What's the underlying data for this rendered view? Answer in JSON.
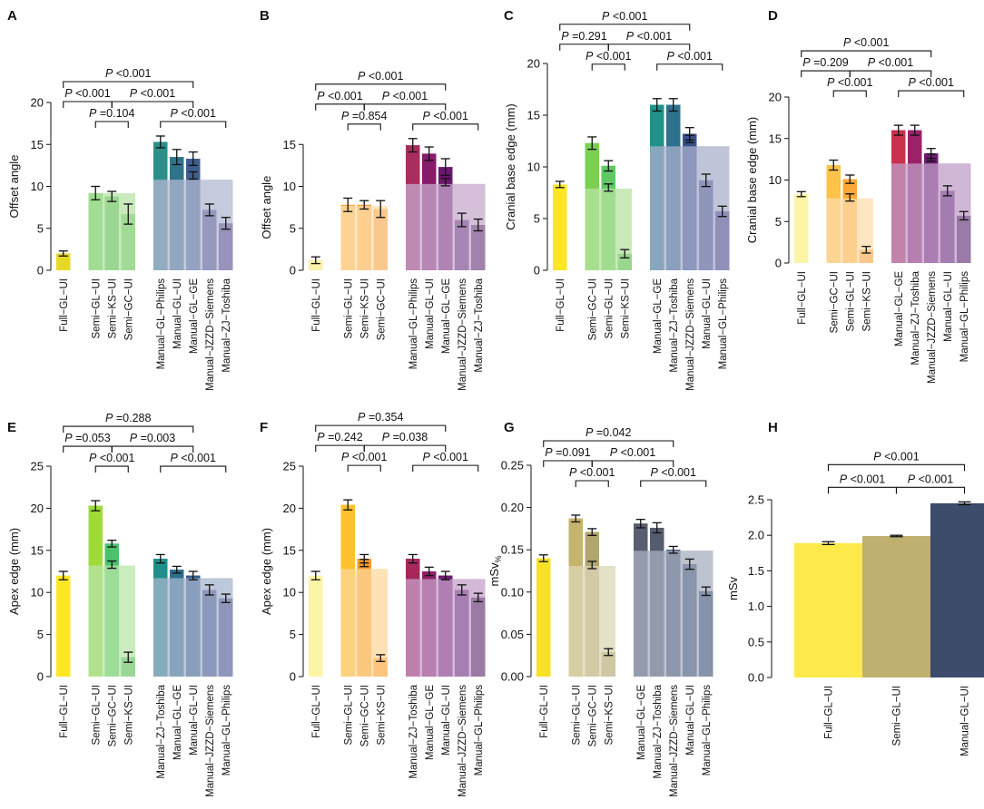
{
  "chart_data": [
    {
      "panel": "A",
      "type": "bar",
      "ylabel": "Offset angle",
      "ylim": [
        0,
        20
      ],
      "yticks": [
        0,
        5,
        10,
        15,
        20
      ],
      "categories": [
        "Full−GL−UI",
        "Semi−GL−UI",
        "Semi−KS−UI",
        "Semi−GC−UI",
        "Manual−GL−Philips",
        "Manual−GL−UI",
        "Manual−GL−GE",
        "Manual−JZZD−Siemens",
        "Manual−ZJ−Toshiba"
      ],
      "groups": [
        1,
        3,
        5
      ],
      "values": [
        2.0,
        9.2,
        8.8,
        6.7,
        15.3,
        13.5,
        13.3,
        7.2,
        5.6
      ],
      "errors": [
        0.3,
        0.8,
        0.6,
        1.2,
        0.7,
        0.9,
        0.8,
        0.7,
        0.7
      ],
      "colors": [
        "#e6d826",
        "#5ec962",
        "#44b158",
        "#62c26a",
        "#2c8f8a",
        "#32738c",
        "#3e5f8e",
        "#463d80",
        "#482777"
      ],
      "group_means": [
        9.2,
        10.8
      ],
      "group_mean_colors": [
        "#b8e3a5",
        "#b2b8d2"
      ],
      "inner_marks": [
        {
          "bar": 6,
          "value": 11.3
        }
      ],
      "brackets": [
        {
          "label": "P <0.001",
          "from": 0,
          "to": 6,
          "level": 3
        },
        {
          "label": "P <0.001",
          "from": 0,
          "to": 2,
          "level": 2
        },
        {
          "label": "P <0.001",
          "from": 2,
          "to": 6,
          "level": 2
        },
        {
          "label": "P =0.104",
          "from": 1,
          "to": 3,
          "level": 1
        },
        {
          "label": "P <0.001",
          "from": 4,
          "to": 8,
          "level": 1
        }
      ]
    },
    {
      "panel": "B",
      "type": "bar",
      "ylabel": "Offset angle",
      "ylim": [
        0,
        20
      ],
      "yticks": [
        0,
        5,
        10,
        15
      ],
      "categories": [
        "Full−GL−UI",
        "Semi−GL−UI",
        "Semi−KS−UI",
        "Semi−GC−UI",
        "Manual−GL−Philips",
        "Manual−GL−UI",
        "Manual−GL−GE",
        "Manual−JZZD−Siemens",
        "Manual−ZJ−Toshiba"
      ],
      "groups": [
        1,
        3,
        5
      ],
      "values": [
        1.2,
        7.8,
        7.8,
        7.3,
        14.9,
        13.9,
        12.3,
        6.0,
        5.4
      ],
      "errors": [
        0.4,
        0.8,
        0.5,
        1.0,
        0.8,
        0.8,
        1.0,
        0.8,
        0.7
      ],
      "colors": [
        "#fdf0a8",
        "#fca835",
        "#f99427",
        "#f07b23",
        "#a82e5f",
        "#871c6b",
        "#6a176e",
        "#481a6c",
        "#2f0f47"
      ],
      "group_means": [
        7.7,
        10.3
      ],
      "group_mean_colors": [
        "#fce1b3",
        "#c7a9cc"
      ],
      "inner_marks": [
        {
          "bar": 6,
          "value": 10.5
        }
      ],
      "brackets": [
        {
          "label": "P <0.001",
          "from": 0,
          "to": 6,
          "level": 3
        },
        {
          "label": "P <0.001",
          "from": 0,
          "to": 2,
          "level": 2
        },
        {
          "label": "P <0.001",
          "from": 2,
          "to": 6,
          "level": 2
        },
        {
          "label": "P =0.854",
          "from": 1,
          "to": 3,
          "level": 1
        },
        {
          "label": "P <0.001",
          "from": 4,
          "to": 8,
          "level": 1
        }
      ]
    },
    {
      "panel": "C",
      "type": "bar",
      "ylabel": "Cranial base edge (mm)",
      "ylim": [
        0,
        20
      ],
      "yticks": [
        0,
        5,
        10,
        15,
        20
      ],
      "categories": [
        "Full−GL−UI",
        "Semi−GC−UI",
        "Semi−GL−UI",
        "Semi−KS−UI",
        "Manual−GL−GE",
        "Manual−ZJ−Toshiba",
        "Manual−JZZD−Siemens",
        "Manual−GL−UI",
        "Manual−GL−Philips"
      ],
      "groups": [
        1,
        3,
        5
      ],
      "values": [
        8.3,
        12.3,
        10.1,
        1.6,
        16.0,
        16.0,
        13.2,
        8.7,
        5.7
      ],
      "errors": [
        0.3,
        0.6,
        0.5,
        0.4,
        0.6,
        0.6,
        0.6,
        0.6,
        0.5
      ],
      "colors": [
        "#fde725",
        "#7ad151",
        "#5ec962",
        "#44b158",
        "#21918c",
        "#2c728e",
        "#3b528b",
        "#414487",
        "#472d7b"
      ],
      "group_means": [
        7.9,
        12.0
      ],
      "group_mean_colors": [
        "#b7e3a0",
        "#a9b0cc"
      ],
      "inner_marks": [
        {
          "bar": 2,
          "value": 8.0
        },
        {
          "bar": 6,
          "value": 12.7
        }
      ],
      "brackets": [
        {
          "label": "P <0.001",
          "from": 0,
          "to": 6,
          "level": 4
        },
        {
          "label": "P =0.291",
          "from": 0,
          "to": 2,
          "level": 3
        },
        {
          "label": "P <0.001",
          "from": 2,
          "to": 6,
          "level": 3
        },
        {
          "label": "P <0.001",
          "from": 1,
          "to": 3,
          "level": 2
        },
        {
          "label": "P <0.001",
          "from": 4,
          "to": 8,
          "level": 2
        }
      ]
    },
    {
      "panel": "D",
      "type": "bar",
      "ylabel": "Cranial base edge (mm)",
      "ylim": [
        0,
        20
      ],
      "yticks": [
        0,
        5,
        10,
        15,
        20
      ],
      "categories": [
        "Full−GL−UI",
        "Semi−GC−UI",
        "Semi−GL−UI",
        "Semi−KS−UI",
        "Manual−GL−GE",
        "Manual−ZJ−Toshiba",
        "Manual−JZZD−Siemens",
        "Manual−GL−UI",
        "Manual−GL−Philips"
      ],
      "groups": [
        1,
        3,
        5
      ],
      "values": [
        8.3,
        11.8,
        10.1,
        1.6,
        16.0,
        16.0,
        13.2,
        8.7,
        5.7
      ],
      "errors": [
        0.3,
        0.6,
        0.5,
        0.4,
        0.6,
        0.6,
        0.6,
        0.6,
        0.5
      ],
      "colors": [
        "#fdf5a6",
        "#fcc24a",
        "#fca835",
        "#f08a2a",
        "#c8324f",
        "#9b2268",
        "#6e1b70",
        "#4d1b6e",
        "#2a0e42"
      ],
      "group_means": [
        7.8,
        12.0
      ],
      "group_mean_colors": [
        "#fddcae",
        "#c09fc8"
      ],
      "inner_marks": [
        {
          "bar": 2,
          "value": 7.9
        },
        {
          "bar": 6,
          "value": 12.7
        }
      ],
      "brackets": [
        {
          "label": "P <0.001",
          "from": 0,
          "to": 6,
          "level": 4
        },
        {
          "label": "P =0.209",
          "from": 0,
          "to": 2,
          "level": 3
        },
        {
          "label": "P <0.001",
          "from": 2,
          "to": 6,
          "level": 3
        },
        {
          "label": "P <0.001",
          "from": 1,
          "to": 3,
          "level": 2
        },
        {
          "label": "P <0.001",
          "from": 4,
          "to": 8,
          "level": 2
        }
      ]
    },
    {
      "panel": "E",
      "type": "bar",
      "ylabel": "Apex edge (mm)",
      "ylim": [
        0,
        25
      ],
      "yticks": [
        0,
        5,
        10,
        15,
        20,
        25
      ],
      "categories": [
        "Full−GL−UI",
        "Semi−GL−UI",
        "Semi−GC−UI",
        "Semi−KS−UI",
        "Manual−ZJ−Toshiba",
        "Manual−GL−GE",
        "Manual−GL−UI",
        "Manual−JZZD−Siemens",
        "Manual−GL−Philips"
      ],
      "groups": [
        1,
        3,
        5
      ],
      "values": [
        12.0,
        20.3,
        15.8,
        2.3,
        14.0,
        12.7,
        12.0,
        10.3,
        9.3
      ],
      "errors": [
        0.5,
        0.6,
        0.4,
        0.6,
        0.5,
        0.4,
        0.5,
        0.6,
        0.5
      ],
      "colors": [
        "#fde725",
        "#a0da39",
        "#4ac16d",
        "#3cad65",
        "#1f8f8b",
        "#2b6f8e",
        "#335a8c",
        "#414487",
        "#443a83"
      ],
      "group_means": [
        13.2,
        11.7
      ],
      "group_mean_colors": [
        "#b8e5a8",
        "#a7b5cd"
      ],
      "inner_marks": [
        {
          "bar": 2,
          "value": 13.3
        }
      ],
      "brackets": [
        {
          "label": "P =0.288",
          "from": 0,
          "to": 6,
          "level": 4
        },
        {
          "label": "P =0.053",
          "from": 0,
          "to": 2,
          "level": 3
        },
        {
          "label": "P =0.003",
          "from": 2,
          "to": 6,
          "level": 3
        },
        {
          "label": "P <0.001",
          "from": 1,
          "to": 3,
          "level": 2
        },
        {
          "label": "P <0.001",
          "from": 4,
          "to": 8,
          "level": 2
        }
      ]
    },
    {
      "panel": "F",
      "type": "bar",
      "ylabel": "Apex edge (mm)",
      "ylim": [
        0,
        25
      ],
      "yticks": [
        0,
        5,
        10,
        15,
        20,
        25
      ],
      "categories": [
        "Full−GL−UI",
        "Semi−GL−UI",
        "Semi−GC−UI",
        "Semi−KS−UI",
        "Manual−ZJ−Toshiba",
        "Manual−GL−GE",
        "Manual−GL−UI",
        "Manual−JZZD−Siemens",
        "Manual−GL−Philips"
      ],
      "groups": [
        1,
        3,
        5
      ],
      "values": [
        12.0,
        20.4,
        14.0,
        2.2,
        14.0,
        12.5,
        12.0,
        10.3,
        9.4
      ],
      "errors": [
        0.5,
        0.6,
        0.5,
        0.4,
        0.5,
        0.5,
        0.5,
        0.6,
        0.5
      ],
      "colors": [
        "#fdf5a6",
        "#fcc22e",
        "#f89a2a",
        "#f58c26",
        "#a7275d",
        "#8f1f69",
        "#6f186f",
        "#4d1a6e",
        "#1e0b36"
      ],
      "group_means": [
        12.8,
        11.6
      ],
      "group_mean_colors": [
        "#fdd79b",
        "#c5a0ca"
      ],
      "inner_marks": [
        {
          "bar": 2,
          "value": 13.5
        }
      ],
      "brackets": [
        {
          "label": "P =0.354",
          "from": 0,
          "to": 6,
          "level": 4
        },
        {
          "label": "P =0.242",
          "from": 0,
          "to": 2,
          "level": 3
        },
        {
          "label": "P =0.038",
          "from": 2,
          "to": 6,
          "level": 3
        },
        {
          "label": "P <0.001",
          "from": 1,
          "to": 3,
          "level": 2
        },
        {
          "label": "P <0.001",
          "from": 4,
          "to": 8,
          "level": 2
        }
      ]
    },
    {
      "panel": "G",
      "type": "bar",
      "ylabel": "mSv%",
      "ylim": [
        0,
        0.25
      ],
      "yticks": [
        0.0,
        0.05,
        0.1,
        0.15,
        0.2,
        0.25
      ],
      "categories": [
        "Full−GL−UI",
        "Semi−GL−UI",
        "Semi−GC−UI",
        "Semi−KS−UI",
        "Manual−GL−GE",
        "Manual−ZJ−Toshiba",
        "Manual−JZZD−Siemens",
        "Manual−GL−UI",
        "Manual−GL−Philips"
      ],
      "groups": [
        1,
        3,
        5
      ],
      "values": [
        0.14,
        0.187,
        0.171,
        0.029,
        0.181,
        0.176,
        0.15,
        0.133,
        0.101
      ],
      "errors": [
        0.004,
        0.004,
        0.004,
        0.004,
        0.005,
        0.006,
        0.004,
        0.006,
        0.005
      ],
      "colors": [
        "#f6e127",
        "#c4b46c",
        "#b1a66f",
        "#a59c72",
        "#585f70",
        "#555c6e",
        "#3f5374",
        "#2d4870",
        "#1f3e6e"
      ],
      "group_means": [
        0.131,
        0.149
      ],
      "group_mean_colors": [
        "#dcd5b6",
        "#a8afc0"
      ],
      "inner_marks": [
        {
          "bar": 2,
          "value": 0.132
        }
      ],
      "brackets": [
        {
          "label": "P =0.042",
          "from": 0,
          "to": 6,
          "level": 4
        },
        {
          "label": "P =0.091",
          "from": 0,
          "to": 2,
          "level": 3
        },
        {
          "label": "P <0.001",
          "from": 2,
          "to": 6,
          "level": 3
        },
        {
          "label": "P <0.001",
          "from": 1,
          "to": 3,
          "level": 2
        },
        {
          "label": "P <0.001",
          "from": 4,
          "to": 8,
          "level": 2
        }
      ]
    },
    {
      "panel": "H",
      "type": "bar",
      "ylabel": "mSv",
      "ylim": [
        0,
        2.5
      ],
      "yticks": [
        0.0,
        0.5,
        1.0,
        1.5,
        2.0,
        2.5
      ],
      "categories": [
        "Full−GL−UI",
        "Semi−GL−UI",
        "Manual−GL−UI"
      ],
      "groups": [
        1,
        1,
        1
      ],
      "values": [
        1.89,
        1.99,
        2.45
      ],
      "errors": [
        0.02,
        0.01,
        0.02
      ],
      "colors": [
        "#fde94a",
        "#bfb06f",
        "#3d4c6a"
      ],
      "group_means": [],
      "group_mean_colors": [],
      "inner_marks": [],
      "brackets": [
        {
          "label": "P <0.001",
          "from": 0,
          "to": 2,
          "level": 2
        },
        {
          "label": "P <0.001",
          "from": 0,
          "to": 1,
          "level": 1
        },
        {
          "label": "P <0.001",
          "from": 1,
          "to": 2,
          "level": 1
        }
      ]
    }
  ]
}
